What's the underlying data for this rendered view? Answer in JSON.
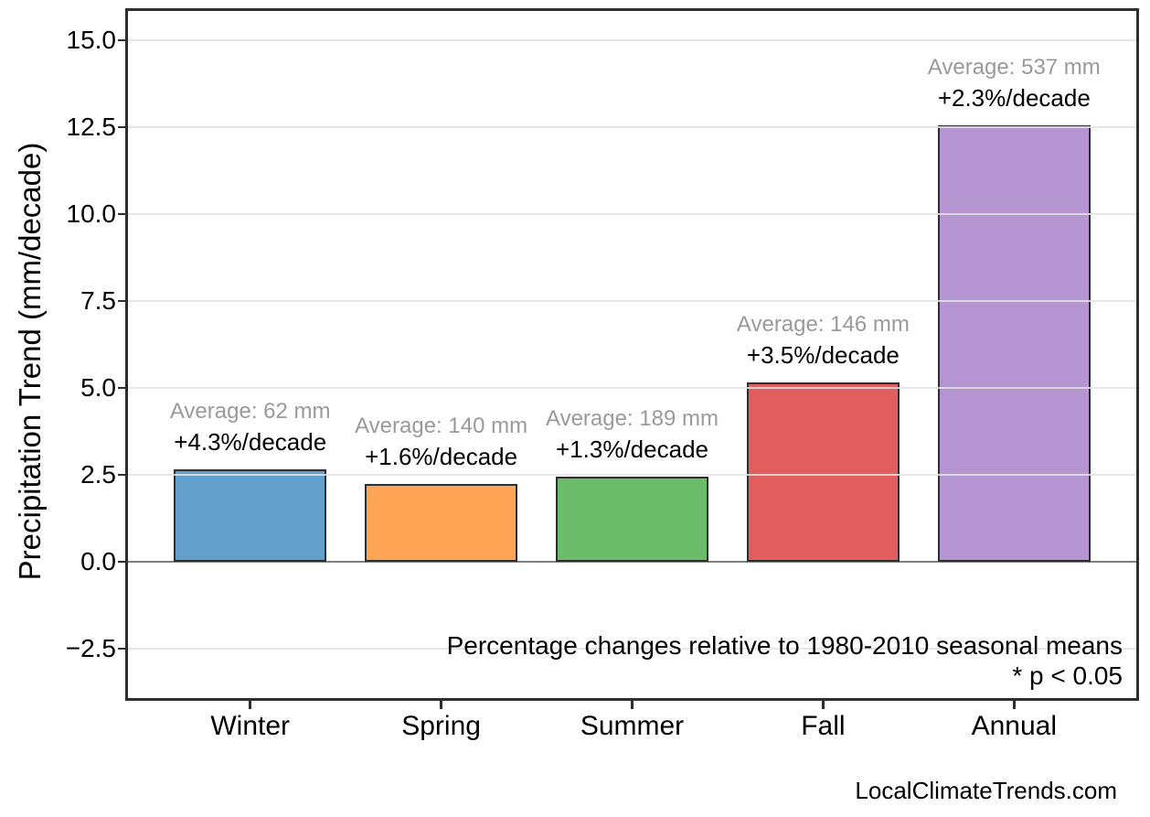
{
  "page": {
    "footer": "LocalClimateTrends.com"
  },
  "chart_data": {
    "type": "bar",
    "title": "",
    "xlabel": "",
    "ylabel": "Precipitation Trend (mm/decade)",
    "categories": [
      "Winter",
      "Spring",
      "Summer",
      "Fall",
      "Annual"
    ],
    "values": [
      2.65,
      2.25,
      2.45,
      5.15,
      12.55
    ],
    "averages_mm": [
      62,
      140,
      189,
      146,
      537
    ],
    "percent_per_decade": [
      4.3,
      1.6,
      1.3,
      3.5,
      2.3
    ],
    "bar_labels_average": [
      "Average: 62 mm",
      "Average: 140 mm",
      "Average: 189 mm",
      "Average: 146 mm",
      "Average: 537 mm"
    ],
    "bar_labels_trend": [
      "+4.3%/decade",
      "+1.6%/decade",
      "+1.3%/decade",
      "+3.5%/decade",
      "+2.3%/decade"
    ],
    "bar_colors": [
      "#62A0CB",
      "#FFA556",
      "#6BBD6B",
      "#E25E5E",
      "#B494D1"
    ],
    "bar_edge_color": "#2e2e2e",
    "yticks": [
      -2.5,
      0,
      2.5,
      5,
      7.5,
      10,
      12.5,
      15
    ],
    "ytick_labels": [
      "−2.5",
      "0.0",
      "2.5",
      "5.0",
      "7.5",
      "10.0",
      "12.5",
      "15.0"
    ],
    "ylim": [
      -3.92,
      15.84
    ],
    "xlim": [
      -0.64,
      4.64
    ],
    "bar_width": 0.8,
    "grid": true,
    "legend_position": "none",
    "annotation_note": [
      "Percentage changes relative to 1980-2010 seasonal means",
      "* p < 0.05"
    ],
    "colors": {
      "grid": "#e3e3e3",
      "zero_line": "#808080",
      "spine": "#2e2e2e",
      "avg_text": "#9a9a9a",
      "trend_text": "#000000"
    }
  }
}
